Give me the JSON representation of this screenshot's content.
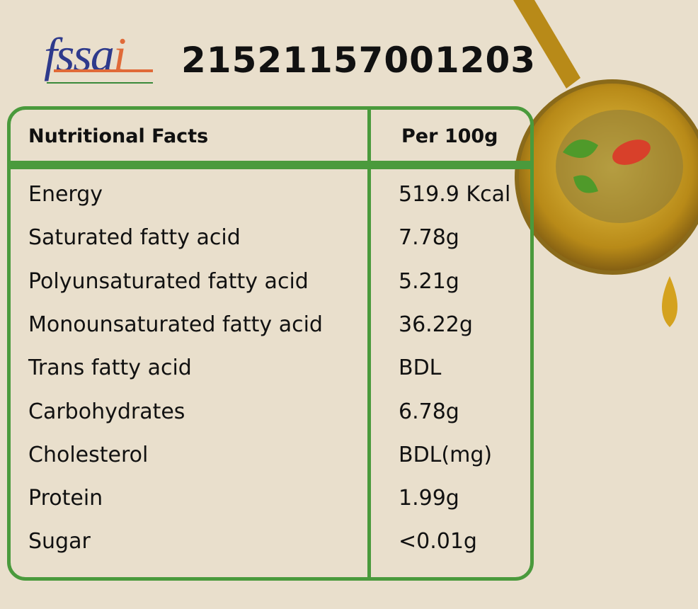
{
  "logo": {
    "text": "fssai"
  },
  "license_number": "21521157001203",
  "table": {
    "header": {
      "nutrient": "Nutritional Facts",
      "amount": "Per 100g"
    },
    "rows": [
      {
        "name": "Energy",
        "value": "519.9 Kcal"
      },
      {
        "name": "Saturated fatty acid",
        "value": "7.78g"
      },
      {
        "name": "Polyunsaturated fatty acid",
        "value": "5.21g"
      },
      {
        "name": "Monounsaturated fatty acid",
        "value": "36.22g"
      },
      {
        "name": "Trans fatty acid",
        "value": "BDL"
      },
      {
        "name": "Carbohydrates",
        "value": "6.78g"
      },
      {
        "name": "Cholesterol",
        "value": "BDL(mg)"
      },
      {
        "name": "Protein",
        "value": "1.99g"
      },
      {
        "name": "Sugar",
        "value": "<0.01g"
      }
    ]
  },
  "colors": {
    "background": "#e9dfcc",
    "border": "#4a9a3c",
    "oil": "#c9a020"
  }
}
